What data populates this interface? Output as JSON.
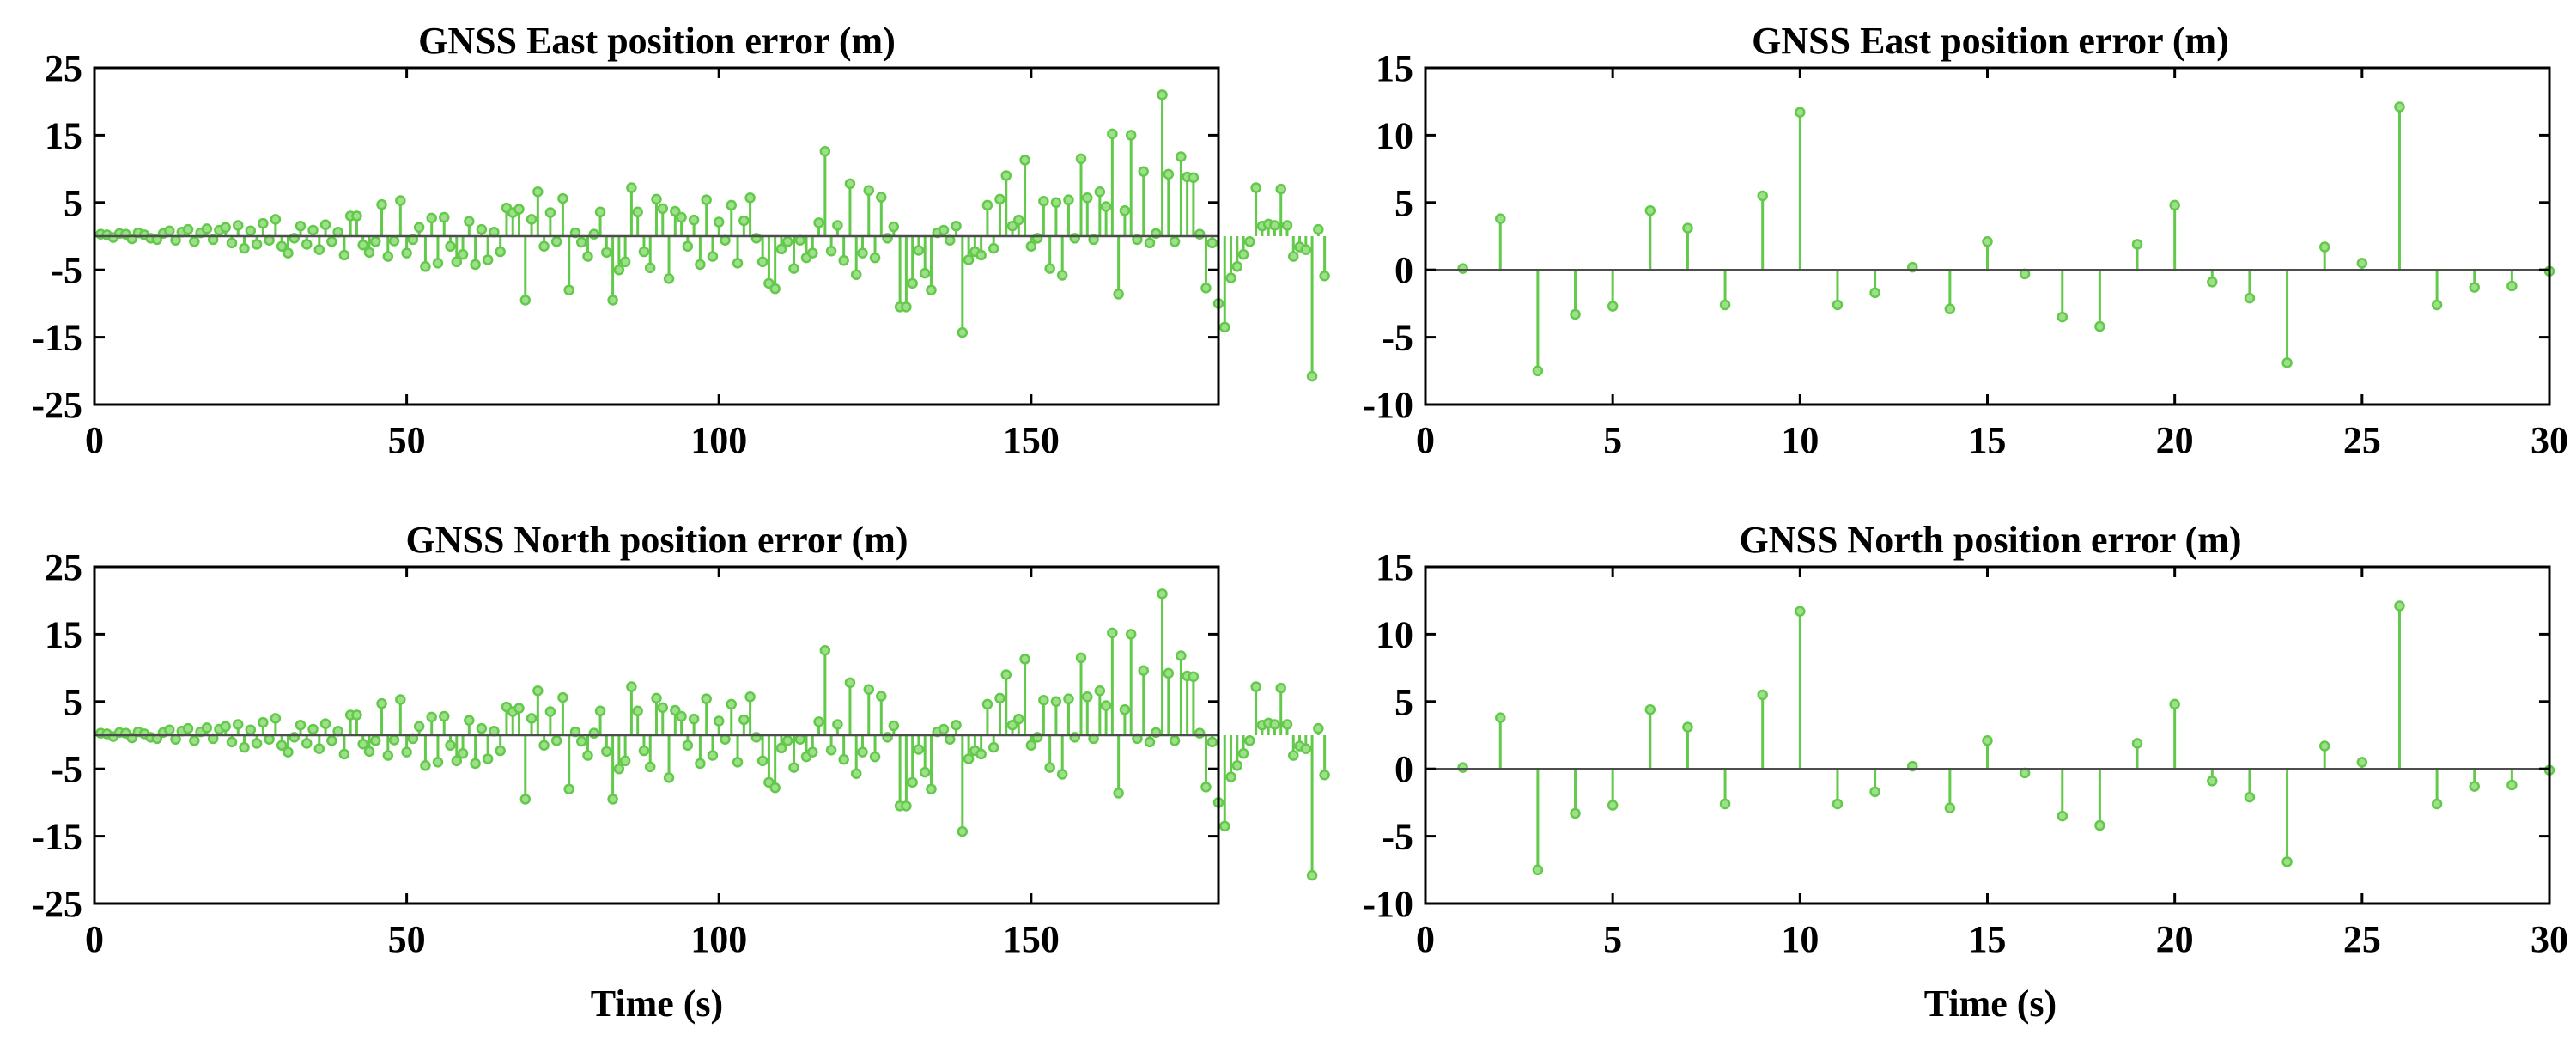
{
  "colors": {
    "stem": "#62c94a",
    "marker_fill": "#9ee08a",
    "axis": "#000000",
    "baseline": "#4d4d4d"
  },
  "chart_data": [
    {
      "id": "east-long",
      "type": "stem",
      "title": "GNSS East position error (m)",
      "xlabel": "",
      "xlim": [
        0,
        180
      ],
      "ylim": [
        -25,
        25
      ],
      "xticks": [
        0,
        50,
        100,
        150
      ],
      "yticks": [
        25,
        15,
        5,
        -5,
        -15,
        -25
      ],
      "xtick_labels": [
        "0",
        "50",
        "100",
        "150"
      ],
      "ytick_labels": [
        "25",
        "15",
        "5",
        "-5",
        "-15",
        "-25"
      ],
      "x_start": 1,
      "x_step": 1,
      "values": [
        0.3,
        0.2,
        -0.2,
        0.4,
        0.3,
        -0.4,
        0.5,
        0.2,
        -0.3,
        -0.5,
        0.4,
        0.8,
        -0.6,
        0.6,
        1.0,
        -0.8,
        0.5,
        1.1,
        -0.5,
        0.9,
        1.3,
        -1.0,
        1.6,
        -1.8,
        0.8,
        -1.2,
        1.9,
        -0.6,
        2.5,
        -1.5,
        -2.5,
        -0.3,
        1.5,
        -1.2,
        0.9,
        -2.0,
        1.7,
        -0.8,
        0.6,
        -2.8,
        3.0,
        3.0,
        -1.3,
        -2.4,
        -0.8,
        4.7,
        -3.0,
        -0.7,
        5.3,
        -2.5,
        -0.5,
        1.3,
        -4.5,
        2.7,
        -4.0,
        2.8,
        -1.5,
        -3.8,
        -2.7,
        2.2,
        -4.2,
        1.0,
        -3.5,
        0.6,
        -2.3,
        4.2,
        3.5,
        4.0,
        -9.5,
        2.5,
        6.6,
        -1.5,
        3.5,
        -0.8,
        5.6,
        -8.0,
        0.5,
        -0.9,
        -3.0,
        0.3,
        3.6,
        -2.4,
        -9.5,
        -5.0,
        -3.8,
        7.2,
        3.6,
        -2.3,
        -4.7,
        5.5,
        4.1,
        -6.3,
        3.7,
        2.8,
        -1.5,
        2.4,
        -4.2,
        5.4,
        -3.0,
        2.1,
        -0.6,
        4.6,
        -4.0,
        2.3,
        5.7,
        -0.3,
        -3.8,
        -7.0,
        -7.8,
        -1.9,
        -0.8,
        -4.8,
        -0.6,
        -3.2,
        -2.5,
        2.0,
        12.6,
        -2.2,
        1.6,
        -3.6,
        7.8,
        -5.7,
        -2.5,
        6.8,
        -3.2,
        5.8,
        -0.3,
        1.4,
        -10.5,
        -10.5,
        -7.0,
        -2.1,
        -5.5,
        -8.0,
        0.5,
        0.9,
        -0.6,
        1.5,
        -14.3,
        -3.5,
        -2.3,
        -2.8,
        4.6,
        -1.8,
        5.5,
        9.0,
        1.5,
        2.4,
        11.3,
        -1.5,
        -0.3,
        5.2,
        -4.8,
        5.0,
        -5.8,
        5.4,
        -0.3,
        11.5,
        5.7,
        -0.5,
        6.6,
        4.4,
        15.2,
        -8.6,
        3.8,
        15.0,
        -0.5,
        9.6,
        -1.0,
        0.4,
        21.0,
        9.2,
        -0.8,
        11.8,
        8.8,
        8.7,
        0.3,
        -7.7,
        -1.0,
        -10.0,
        -13.5,
        -6.2,
        -4.5,
        -2.7,
        -0.8,
        7.2,
        1.5,
        1.8,
        1.6,
        7.0,
        1.6,
        -3.0,
        -1.6,
        -2.0,
        -20.8,
        1.0,
        -5.9
      ],
      "marks": []
    },
    {
      "id": "east-short",
      "type": "stem",
      "title": "GNSS East position error (m)",
      "xlabel": "",
      "xlim": [
        0,
        30
      ],
      "ylim": [
        -10,
        15
      ],
      "xticks": [
        0,
        5,
        10,
        15,
        20,
        25,
        30
      ],
      "yticks": [
        15,
        10,
        5,
        0,
        -5,
        -10
      ],
      "xtick_labels": [
        "0",
        "5",
        "10",
        "15",
        "20",
        "25",
        "30"
      ],
      "ytick_labels": [
        "15",
        "10",
        "5",
        "0",
        "-5",
        "-10"
      ],
      "x_start": 1,
      "x_step": 1,
      "values": [
        0.1,
        3.8,
        -7.5,
        -3.3,
        -2.7,
        4.4,
        3.1,
        -2.6,
        5.5,
        11.7,
        -2.6,
        -1.7,
        0.2,
        -2.9,
        2.1,
        -0.3,
        -3.5,
        -4.2,
        1.9,
        4.8,
        -0.9,
        -2.1,
        -6.9,
        1.7,
        0.5,
        12.1,
        -2.6,
        -1.3,
        -1.2,
        -0.1
      ],
      "marks": []
    },
    {
      "id": "north-long",
      "type": "stem",
      "title": "GNSS North position error (m)",
      "xlabel": "Time (s)",
      "xlim": [
        0,
        180
      ],
      "ylim": [
        -25,
        25
      ],
      "xticks": [
        0,
        50,
        100,
        150
      ],
      "yticks": [
        25,
        15,
        5,
        -5,
        -15,
        -25
      ],
      "xtick_labels": [
        "0",
        "50",
        "100",
        "150"
      ],
      "ytick_labels": [
        "25",
        "15",
        "5",
        "-5",
        "-15",
        "-25"
      ],
      "x_start": 1,
      "x_step": 1,
      "values": [
        0.3,
        0.2,
        -0.2,
        0.4,
        0.3,
        -0.4,
        0.5,
        0.2,
        -0.3,
        -0.5,
        0.4,
        0.8,
        -0.6,
        0.6,
        1.0,
        -0.8,
        0.5,
        1.1,
        -0.5,
        0.9,
        1.3,
        -1.0,
        1.6,
        -1.8,
        0.8,
        -1.2,
        1.9,
        -0.6,
        2.5,
        -1.5,
        -2.5,
        -0.3,
        1.5,
        -1.2,
        0.9,
        -2.0,
        1.7,
        -0.8,
        0.6,
        -2.8,
        3.0,
        3.0,
        -1.3,
        -2.4,
        -0.8,
        4.7,
        -3.0,
        -0.7,
        5.3,
        -2.5,
        -0.5,
        1.3,
        -4.5,
        2.7,
        -4.0,
        2.8,
        -1.5,
        -3.8,
        -2.7,
        2.2,
        -4.2,
        1.0,
        -3.5,
        0.6,
        -2.3,
        4.2,
        3.5,
        4.0,
        -9.5,
        2.5,
        6.6,
        -1.5,
        3.5,
        -0.8,
        5.6,
        -8.0,
        0.5,
        -0.9,
        -3.0,
        0.3,
        3.6,
        -2.4,
        -9.5,
        -5.0,
        -3.8,
        7.2,
        3.6,
        -2.3,
        -4.7,
        5.5,
        4.1,
        -6.3,
        3.7,
        2.8,
        -1.5,
        2.4,
        -4.2,
        5.4,
        -3.0,
        2.1,
        -0.6,
        4.6,
        -4.0,
        2.3,
        5.7,
        -0.3,
        -3.8,
        -7.0,
        -7.8,
        -1.9,
        -0.8,
        -4.8,
        -0.6,
        -3.2,
        -2.5,
        2.0,
        12.6,
        -2.2,
        1.6,
        -3.6,
        7.8,
        -5.7,
        -2.5,
        6.8,
        -3.2,
        5.8,
        -0.3,
        1.4,
        -10.5,
        -10.5,
        -7.0,
        -2.1,
        -5.5,
        -8.0,
        0.5,
        0.9,
        -0.6,
        1.5,
        -14.3,
        -3.5,
        -2.3,
        -2.8,
        4.6,
        -1.8,
        5.5,
        9.0,
        1.5,
        2.4,
        11.3,
        -1.5,
        -0.3,
        5.2,
        -4.8,
        5.0,
        -5.8,
        5.4,
        -0.3,
        11.5,
        5.7,
        -0.5,
        6.6,
        4.4,
        15.2,
        -8.6,
        3.8,
        15.0,
        -0.5,
        9.6,
        -1.0,
        0.4,
        21.0,
        9.2,
        -0.8,
        11.8,
        8.8,
        8.7,
        0.3,
        -7.7,
        -1.0,
        -10.0,
        -13.5,
        -6.2,
        -4.5,
        -2.7,
        -0.8,
        7.2,
        1.5,
        1.8,
        1.6,
        7.0,
        1.6,
        -3.0,
        -1.6,
        -2.0,
        -20.8,
        1.0,
        -5.9
      ],
      "marks": []
    },
    {
      "id": "north-short",
      "type": "stem",
      "title": "GNSS North position error (m)",
      "xlabel": "Time (s)",
      "xlim": [
        0,
        30
      ],
      "ylim": [
        -10,
        15
      ],
      "xticks": [
        0,
        5,
        10,
        15,
        20,
        25,
        30
      ],
      "yticks": [
        15,
        10,
        5,
        0,
        -5,
        -10
      ],
      "xtick_labels": [
        "0",
        "5",
        "10",
        "15",
        "20",
        "25",
        "30"
      ],
      "ytick_labels": [
        "15",
        "10",
        "5",
        "0",
        "-5",
        "-10"
      ],
      "x_start": 1,
      "x_step": 1,
      "values": [
        0.1,
        3.8,
        -7.5,
        -3.3,
        -2.7,
        4.4,
        3.1,
        -2.6,
        5.5,
        11.7,
        -2.6,
        -1.7,
        0.2,
        -2.9,
        2.1,
        -0.3,
        -3.5,
        -4.2,
        1.9,
        4.8,
        -0.9,
        -2.1,
        -6.9,
        1.7,
        0.5,
        12.1,
        -2.6,
        -1.3,
        -1.2,
        -0.1
      ],
      "marks": []
    }
  ]
}
